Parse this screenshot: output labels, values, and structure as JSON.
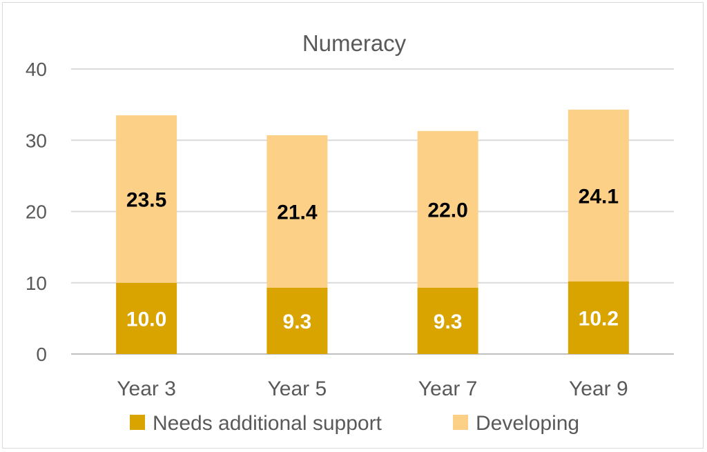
{
  "chart_data": {
    "type": "bar",
    "stacked": true,
    "title": "Numeracy",
    "categories": [
      "Year 3",
      "Year 5",
      "Year 7",
      "Year 9"
    ],
    "series": [
      {
        "name": "Needs additional support",
        "values": [
          10.0,
          9.3,
          9.3,
          10.2
        ],
        "color": "#d9a300",
        "label_color": "#ffffff"
      },
      {
        "name": "Developing",
        "values": [
          23.5,
          21.4,
          22.0,
          24.1
        ],
        "color": "#fdd088",
        "label_color": "#000000"
      }
    ],
    "ylim": [
      0,
      40
    ],
    "yticks": [
      0,
      10,
      20,
      30,
      40
    ],
    "grid": true,
    "legend": "bottom",
    "xlabel": "",
    "ylabel": ""
  }
}
